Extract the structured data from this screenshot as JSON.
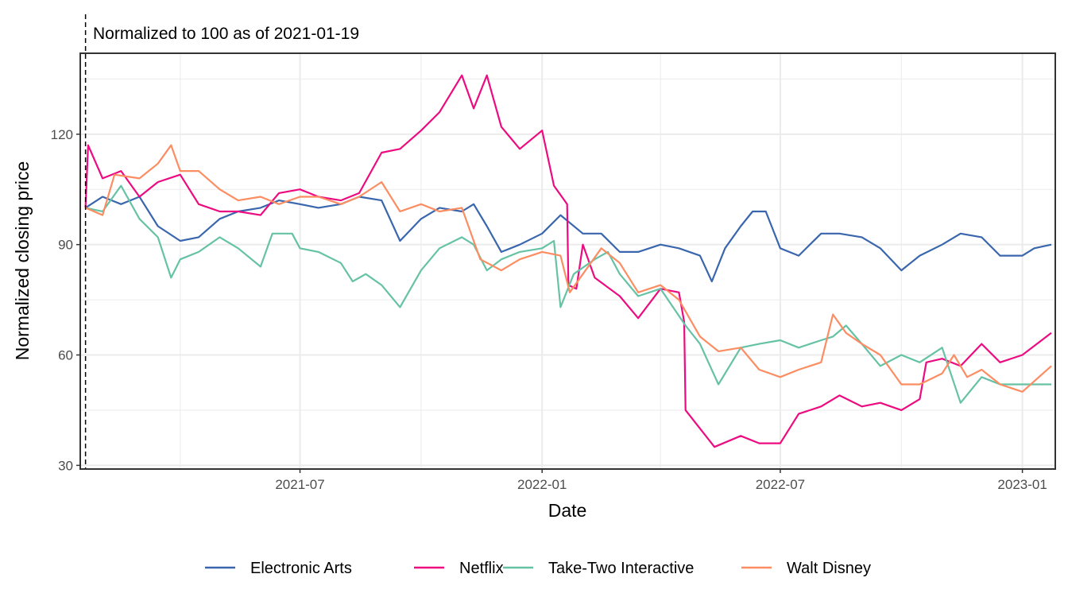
{
  "chart_data": {
    "type": "line",
    "title": "",
    "xlabel": "Date",
    "ylabel": "Normalized closing price",
    "annotation": "Normalized to 100 as of 2021-01-19",
    "reference_date": "2021-01-19",
    "xlim": [
      "2021-01-15",
      "2023-01-26"
    ],
    "ylim": [
      29,
      142
    ],
    "x_ticks": [
      {
        "date": "2021-07-01",
        "label": "2021-07"
      },
      {
        "date": "2022-01-01",
        "label": "2022-01"
      },
      {
        "date": "2022-07-01",
        "label": "2022-07"
      },
      {
        "date": "2023-01-01",
        "label": "2023-01"
      }
    ],
    "x_minor": [
      "2021-04-01",
      "2021-10-01",
      "2022-04-01",
      "2022-10-01"
    ],
    "y_ticks": [
      30,
      60,
      90,
      120
    ],
    "y_minor": [
      45,
      75,
      105,
      135
    ],
    "grid": true,
    "legend_position": "bottom",
    "series": [
      {
        "name": "Electronic Arts",
        "color": "#3a66ad",
        "points": [
          [
            "2021-01-19",
            100
          ],
          [
            "2021-02-01",
            103
          ],
          [
            "2021-02-15",
            101
          ],
          [
            "2021-03-01",
            103
          ],
          [
            "2021-03-15",
            95
          ],
          [
            "2021-04-01",
            91
          ],
          [
            "2021-04-15",
            92
          ],
          [
            "2021-05-01",
            97
          ],
          [
            "2021-05-15",
            99
          ],
          [
            "2021-06-01",
            100
          ],
          [
            "2021-06-15",
            102
          ],
          [
            "2021-07-01",
            101
          ],
          [
            "2021-07-15",
            100
          ],
          [
            "2021-08-01",
            101
          ],
          [
            "2021-08-15",
            103
          ],
          [
            "2021-09-01",
            102
          ],
          [
            "2021-09-15",
            91
          ],
          [
            "2021-10-01",
            97
          ],
          [
            "2021-10-15",
            100
          ],
          [
            "2021-11-01",
            99
          ],
          [
            "2021-11-10",
            101
          ],
          [
            "2021-11-20",
            95
          ],
          [
            "2021-12-01",
            88
          ],
          [
            "2021-12-15",
            90
          ],
          [
            "2022-01-01",
            93
          ],
          [
            "2022-01-15",
            98
          ],
          [
            "2022-02-01",
            93
          ],
          [
            "2022-02-15",
            93
          ],
          [
            "2022-03-01",
            88
          ],
          [
            "2022-03-15",
            88
          ],
          [
            "2022-04-01",
            90
          ],
          [
            "2022-04-15",
            89
          ],
          [
            "2022-05-01",
            87
          ],
          [
            "2022-05-10",
            80
          ],
          [
            "2022-05-20",
            89
          ],
          [
            "2022-06-01",
            95
          ],
          [
            "2022-06-10",
            99
          ],
          [
            "2022-06-20",
            99
          ],
          [
            "2022-07-01",
            89
          ],
          [
            "2022-07-15",
            87
          ],
          [
            "2022-08-01",
            93
          ],
          [
            "2022-08-15",
            93
          ],
          [
            "2022-09-01",
            92
          ],
          [
            "2022-09-15",
            89
          ],
          [
            "2022-10-01",
            83
          ],
          [
            "2022-10-15",
            87
          ],
          [
            "2022-11-01",
            90
          ],
          [
            "2022-11-15",
            93
          ],
          [
            "2022-12-01",
            92
          ],
          [
            "2022-12-15",
            87
          ],
          [
            "2023-01-01",
            87
          ],
          [
            "2023-01-10",
            89
          ],
          [
            "2023-01-23",
            90
          ]
        ]
      },
      {
        "name": "Netflix",
        "color": "#ec0b80",
        "points": [
          [
            "2021-01-19",
            100
          ],
          [
            "2021-01-21",
            117
          ],
          [
            "2021-02-01",
            108
          ],
          [
            "2021-02-15",
            110
          ],
          [
            "2021-03-01",
            103
          ],
          [
            "2021-03-15",
            107
          ],
          [
            "2021-04-01",
            109
          ],
          [
            "2021-04-15",
            101
          ],
          [
            "2021-05-01",
            99
          ],
          [
            "2021-05-15",
            99
          ],
          [
            "2021-06-01",
            98
          ],
          [
            "2021-06-15",
            104
          ],
          [
            "2021-07-01",
            105
          ],
          [
            "2021-07-15",
            103
          ],
          [
            "2021-08-01",
            102
          ],
          [
            "2021-08-15",
            104
          ],
          [
            "2021-09-01",
            115
          ],
          [
            "2021-09-15",
            116
          ],
          [
            "2021-10-01",
            121
          ],
          [
            "2021-10-15",
            126
          ],
          [
            "2021-11-01",
            136
          ],
          [
            "2021-11-10",
            127
          ],
          [
            "2021-11-20",
            136
          ],
          [
            "2021-12-01",
            122
          ],
          [
            "2021-12-15",
            116
          ],
          [
            "2022-01-01",
            121
          ],
          [
            "2022-01-10",
            106
          ],
          [
            "2022-01-20",
            101
          ],
          [
            "2022-01-21",
            79
          ],
          [
            "2022-01-27",
            78
          ],
          [
            "2022-02-01",
            90
          ],
          [
            "2022-02-10",
            81
          ],
          [
            "2022-03-01",
            76
          ],
          [
            "2022-03-15",
            70
          ],
          [
            "2022-04-01",
            78
          ],
          [
            "2022-04-15",
            77
          ],
          [
            "2022-04-19",
            69
          ],
          [
            "2022-04-20",
            45
          ],
          [
            "2022-05-01",
            40
          ],
          [
            "2022-05-12",
            35
          ],
          [
            "2022-06-01",
            38
          ],
          [
            "2022-06-15",
            36
          ],
          [
            "2022-07-01",
            36
          ],
          [
            "2022-07-15",
            44
          ],
          [
            "2022-08-01",
            46
          ],
          [
            "2022-08-15",
            49
          ],
          [
            "2022-09-01",
            46
          ],
          [
            "2022-09-15",
            47
          ],
          [
            "2022-10-01",
            45
          ],
          [
            "2022-10-15",
            48
          ],
          [
            "2022-10-20",
            58
          ],
          [
            "2022-11-01",
            59
          ],
          [
            "2022-11-15",
            57
          ],
          [
            "2022-12-01",
            63
          ],
          [
            "2022-12-15",
            58
          ],
          [
            "2023-01-01",
            60
          ],
          [
            "2023-01-23",
            66
          ]
        ]
      },
      {
        "name": "Take-Two Interactive",
        "color": "#66c2a5",
        "points": [
          [
            "2021-01-19",
            100
          ],
          [
            "2021-02-01",
            99
          ],
          [
            "2021-02-15",
            106
          ],
          [
            "2021-03-01",
            97
          ],
          [
            "2021-03-15",
            92
          ],
          [
            "2021-03-25",
            81
          ],
          [
            "2021-04-01",
            86
          ],
          [
            "2021-04-15",
            88
          ],
          [
            "2021-05-01",
            92
          ],
          [
            "2021-05-15",
            89
          ],
          [
            "2021-06-01",
            84
          ],
          [
            "2021-06-10",
            93
          ],
          [
            "2021-06-25",
            93
          ],
          [
            "2021-07-01",
            89
          ],
          [
            "2021-07-15",
            88
          ],
          [
            "2021-08-01",
            85
          ],
          [
            "2021-08-10",
            80
          ],
          [
            "2021-08-20",
            82
          ],
          [
            "2021-09-01",
            79
          ],
          [
            "2021-09-15",
            73
          ],
          [
            "2021-10-01",
            83
          ],
          [
            "2021-10-15",
            89
          ],
          [
            "2021-11-01",
            92
          ],
          [
            "2021-11-10",
            90
          ],
          [
            "2021-11-20",
            83
          ],
          [
            "2021-12-01",
            86
          ],
          [
            "2021-12-15",
            88
          ],
          [
            "2022-01-01",
            89
          ],
          [
            "2022-01-10",
            91
          ],
          [
            "2022-01-15",
            73
          ],
          [
            "2022-01-25",
            82
          ],
          [
            "2022-02-10",
            86
          ],
          [
            "2022-02-20",
            88
          ],
          [
            "2022-03-01",
            82
          ],
          [
            "2022-03-15",
            76
          ],
          [
            "2022-04-01",
            78
          ],
          [
            "2022-04-20",
            68
          ],
          [
            "2022-05-01",
            63
          ],
          [
            "2022-05-15",
            52
          ],
          [
            "2022-06-01",
            62
          ],
          [
            "2022-06-15",
            63
          ],
          [
            "2022-07-01",
            64
          ],
          [
            "2022-07-15",
            62
          ],
          [
            "2022-08-01",
            64
          ],
          [
            "2022-08-10",
            65
          ],
          [
            "2022-08-20",
            68
          ],
          [
            "2022-09-01",
            63
          ],
          [
            "2022-09-15",
            57
          ],
          [
            "2022-10-01",
            60
          ],
          [
            "2022-10-15",
            58
          ],
          [
            "2022-11-01",
            62
          ],
          [
            "2022-11-15",
            47
          ],
          [
            "2022-12-01",
            54
          ],
          [
            "2022-12-15",
            52
          ],
          [
            "2023-01-01",
            52
          ],
          [
            "2023-01-23",
            52
          ]
        ]
      },
      {
        "name": "Walt Disney",
        "color": "#fc8d62",
        "points": [
          [
            "2021-01-19",
            100
          ],
          [
            "2021-02-01",
            98
          ],
          [
            "2021-02-10",
            109
          ],
          [
            "2021-03-01",
            108
          ],
          [
            "2021-03-15",
            112
          ],
          [
            "2021-03-25",
            117
          ],
          [
            "2021-04-01",
            110
          ],
          [
            "2021-04-15",
            110
          ],
          [
            "2021-05-01",
            105
          ],
          [
            "2021-05-15",
            102
          ],
          [
            "2021-06-01",
            103
          ],
          [
            "2021-06-15",
            101
          ],
          [
            "2021-07-01",
            103
          ],
          [
            "2021-07-15",
            103
          ],
          [
            "2021-08-01",
            101
          ],
          [
            "2021-08-15",
            103
          ],
          [
            "2021-09-01",
            107
          ],
          [
            "2021-09-15",
            99
          ],
          [
            "2021-10-01",
            101
          ],
          [
            "2021-10-15",
            99
          ],
          [
            "2021-11-01",
            100
          ],
          [
            "2021-11-15",
            86
          ],
          [
            "2021-12-01",
            83
          ],
          [
            "2021-12-15",
            86
          ],
          [
            "2022-01-01",
            88
          ],
          [
            "2022-01-15",
            87
          ],
          [
            "2022-01-22",
            77
          ],
          [
            "2022-02-01",
            82
          ],
          [
            "2022-02-15",
            89
          ],
          [
            "2022-03-01",
            85
          ],
          [
            "2022-03-15",
            77
          ],
          [
            "2022-04-01",
            79
          ],
          [
            "2022-04-15",
            75
          ],
          [
            "2022-05-01",
            65
          ],
          [
            "2022-05-15",
            61
          ],
          [
            "2022-06-01",
            62
          ],
          [
            "2022-06-15",
            56
          ],
          [
            "2022-07-01",
            54
          ],
          [
            "2022-07-15",
            56
          ],
          [
            "2022-08-01",
            58
          ],
          [
            "2022-08-10",
            71
          ],
          [
            "2022-08-20",
            66
          ],
          [
            "2022-09-01",
            63
          ],
          [
            "2022-09-15",
            60
          ],
          [
            "2022-10-01",
            52
          ],
          [
            "2022-10-15",
            52
          ],
          [
            "2022-11-01",
            55
          ],
          [
            "2022-11-10",
            60
          ],
          [
            "2022-11-20",
            54
          ],
          [
            "2022-12-01",
            56
          ],
          [
            "2022-12-15",
            52
          ],
          [
            "2023-01-01",
            50
          ],
          [
            "2023-01-23",
            57
          ]
        ]
      }
    ]
  }
}
